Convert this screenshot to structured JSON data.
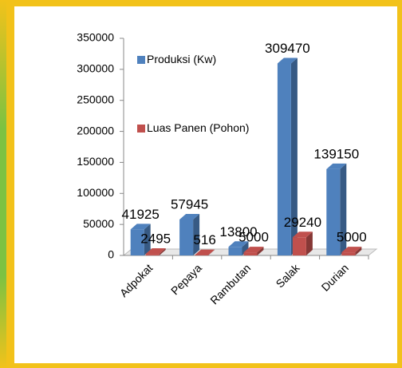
{
  "chart_data": {
    "type": "bar",
    "categories": [
      "Adpokat",
      "Pepaya",
      "Rambutan",
      "Salak",
      "Durian"
    ],
    "series": [
      {
        "name": "Produksi (Kw)",
        "color": "#4f81bd",
        "values": [
          41925,
          57945,
          13800,
          309470,
          139150
        ]
      },
      {
        "name": "Luas Panen (Pohon)",
        "color": "#c0504d",
        "values": [
          2495,
          516,
          5000,
          29240,
          5000
        ]
      }
    ],
    "ylim": [
      0,
      350000
    ],
    "yticks": [
      0,
      50000,
      100000,
      150000,
      200000,
      250000,
      300000,
      350000
    ],
    "grid": false,
    "legend": "top-left"
  }
}
